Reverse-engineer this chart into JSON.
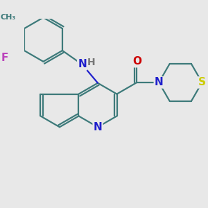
{
  "bg_color": "#e8e8e8",
  "bond_color": "#3d7a7a",
  "bond_width": 1.6,
  "dbo": 0.012,
  "atom_colors": {
    "N": "#2020cc",
    "O": "#cc0000",
    "F": "#bb44bb",
    "S": "#cccc00",
    "C": "#3d7a7a",
    "H": "#777777"
  },
  "fs": 11
}
